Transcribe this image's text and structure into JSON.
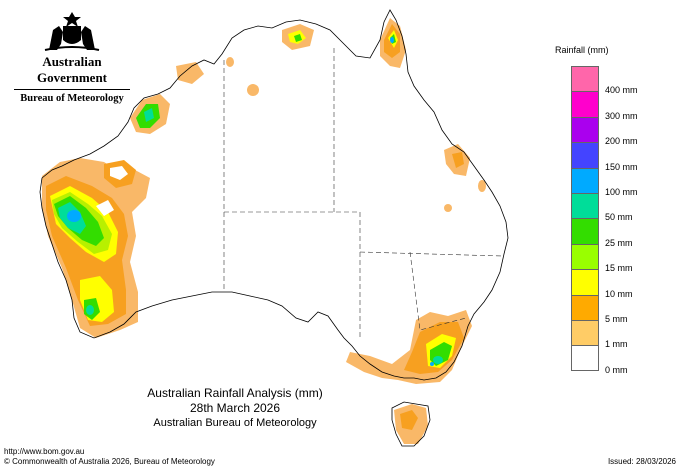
{
  "header": {
    "government": "Australian Government",
    "bureau": "Bureau of Meteorology"
  },
  "map": {
    "title": "Australian Rainfall Analysis (mm)",
    "date": "28th March 2026",
    "source": "Australian Bureau of Meteorology"
  },
  "legend": {
    "title": "Rainfall (mm)",
    "bands": [
      {
        "label": "",
        "color": "#ff66aa"
      },
      {
        "label": "400 mm",
        "color": "#ff00cc"
      },
      {
        "label": "300 mm",
        "color": "#aa00ee"
      },
      {
        "label": "200 mm",
        "color": "#4444ff"
      },
      {
        "label": "150 mm",
        "color": "#00aaff"
      },
      {
        "label": "100 mm",
        "color": "#00dd99"
      },
      {
        "label": "50 mm",
        "color": "#33dd00"
      },
      {
        "label": "25 mm",
        "color": "#99ff00"
      },
      {
        "label": "15 mm",
        "color": "#ffff00"
      },
      {
        "label": "10 mm",
        "color": "#ffaa00"
      },
      {
        "label": "5 mm",
        "color": "#ffcc66"
      },
      {
        "label": "1 mm",
        "color": "#ffffff"
      },
      {
        "label": "0 mm",
        "color": null
      }
    ]
  },
  "footer": {
    "url": "http://www.bom.gov.au",
    "copyright": "© Commonwealth of Australia 2026, Bureau of Meteorology",
    "issued": "Issued: 28/03/2026"
  },
  "colors": {
    "r1": "#f9b868",
    "r5": "#f7a020",
    "r10": "#ffff00",
    "r15": "#b8f000",
    "r25": "#33dd00",
    "r50": "#00dd99",
    "r100": "#00aaff"
  }
}
